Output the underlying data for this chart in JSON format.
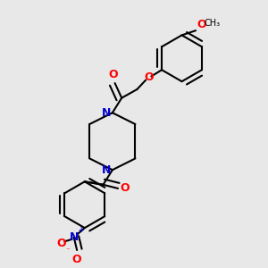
{
  "bg_color": "#e8e8e8",
  "bond_color": "#000000",
  "bond_width": 1.5,
  "dbo": 0.018,
  "atom_colors": {
    "O": "#ff0000",
    "N": "#0000cc",
    "C": "#000000"
  },
  "font_size_atom": 9,
  "font_size_small": 7.5
}
